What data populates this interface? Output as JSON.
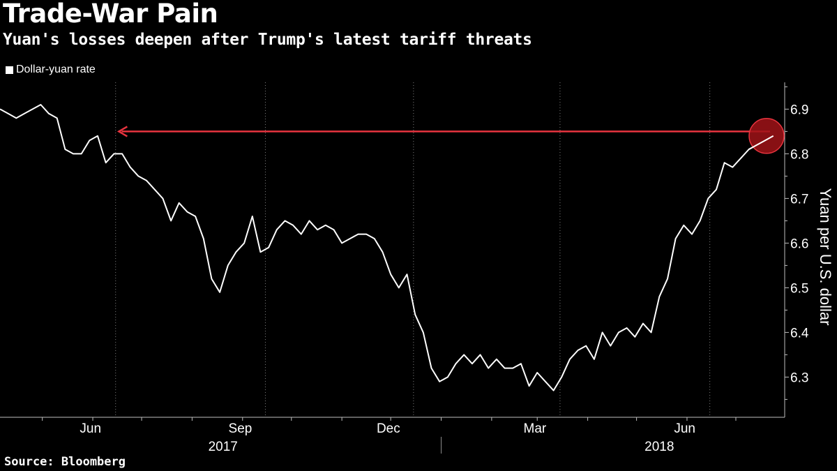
{
  "header": {
    "title": "Trade-War Pain",
    "subtitle": "Yuan's losses deepen after Trump's latest tariff threats"
  },
  "legend": {
    "label": "Dollar-yuan rate"
  },
  "source": "Source: Bloomberg",
  "colors": {
    "background": "#000000",
    "line": "#ffffff",
    "grid": "#808080",
    "annotation": "#e8343f",
    "highlight": "#a01318"
  },
  "chart_data": {
    "type": "line",
    "title": "Trade-War Pain",
    "subtitle": "Yuan's losses deepen after Trump's latest tariff threats",
    "ylabel": "Yuan per U.S. dollar",
    "ylim": [
      6.21,
      6.96
    ],
    "y_ticks": [
      6.3,
      6.4,
      6.5,
      6.6,
      6.7,
      6.8,
      6.9
    ],
    "xlim": [
      "2017-04-05",
      "2018-07-31"
    ],
    "x_ticks": [
      {
        "label": "Jun",
        "date": "2017-06-15"
      },
      {
        "label": "Sep",
        "date": "2017-09-15"
      },
      {
        "label": "Dec",
        "date": "2017-12-15"
      },
      {
        "label": "Mar",
        "date": "2018-03-15"
      },
      {
        "label": "Jun",
        "date": "2018-06-15"
      }
    ],
    "year_labels": [
      {
        "label": "2017",
        "date": "2017-08-20"
      },
      {
        "label": "2018",
        "date": "2018-05-15"
      }
    ],
    "year_divider": "2018-01-01",
    "grid": "vertical-dotted",
    "legend_position": "top-left",
    "series": [
      {
        "name": "Dollar-yuan rate",
        "x": [
          "2017-04-05",
          "2017-04-10",
          "2017-04-15",
          "2017-04-20",
          "2017-04-25",
          "2017-04-30",
          "2017-05-05",
          "2017-05-10",
          "2017-05-15",
          "2017-05-20",
          "2017-05-25",
          "2017-05-30",
          "2017-06-04",
          "2017-06-09",
          "2017-06-14",
          "2017-06-19",
          "2017-06-24",
          "2017-06-29",
          "2017-07-04",
          "2017-07-09",
          "2017-07-14",
          "2017-07-19",
          "2017-07-24",
          "2017-07-29",
          "2017-08-03",
          "2017-08-08",
          "2017-08-13",
          "2017-08-18",
          "2017-08-23",
          "2017-08-28",
          "2017-09-02",
          "2017-09-07",
          "2017-09-12",
          "2017-09-17",
          "2017-09-22",
          "2017-09-27",
          "2017-10-02",
          "2017-10-07",
          "2017-10-12",
          "2017-10-17",
          "2017-10-22",
          "2017-10-27",
          "2017-11-01",
          "2017-11-06",
          "2017-11-11",
          "2017-11-16",
          "2017-11-21",
          "2017-11-26",
          "2017-12-01",
          "2017-12-06",
          "2017-12-11",
          "2017-12-16",
          "2017-12-21",
          "2017-12-26",
          "2017-12-31",
          "2018-01-05",
          "2018-01-10",
          "2018-01-15",
          "2018-01-20",
          "2018-01-25",
          "2018-01-30",
          "2018-02-04",
          "2018-02-09",
          "2018-02-14",
          "2018-02-19",
          "2018-02-24",
          "2018-03-01",
          "2018-03-06",
          "2018-03-11",
          "2018-03-16",
          "2018-03-21",
          "2018-03-26",
          "2018-03-31",
          "2018-04-05",
          "2018-04-10",
          "2018-04-15",
          "2018-04-20",
          "2018-04-25",
          "2018-04-30",
          "2018-05-05",
          "2018-05-10",
          "2018-05-15",
          "2018-05-20",
          "2018-05-25",
          "2018-05-30",
          "2018-06-04",
          "2018-06-09",
          "2018-06-14",
          "2018-06-19",
          "2018-06-24",
          "2018-06-29",
          "2018-07-04",
          "2018-07-09",
          "2018-07-14",
          "2018-07-19",
          "2018-07-24"
        ],
        "values": [
          6.9,
          6.89,
          6.88,
          6.89,
          6.9,
          6.91,
          6.89,
          6.88,
          6.81,
          6.8,
          6.8,
          6.83,
          6.84,
          6.78,
          6.8,
          6.8,
          6.77,
          6.75,
          6.74,
          6.72,
          6.7,
          6.65,
          6.69,
          6.67,
          6.66,
          6.61,
          6.52,
          6.49,
          6.55,
          6.58,
          6.6,
          6.66,
          6.58,
          6.59,
          6.63,
          6.65,
          6.64,
          6.62,
          6.65,
          6.63,
          6.64,
          6.63,
          6.6,
          6.61,
          6.62,
          6.62,
          6.61,
          6.58,
          6.53,
          6.5,
          6.53,
          6.44,
          6.4,
          6.32,
          6.29,
          6.3,
          6.33,
          6.35,
          6.33,
          6.35,
          6.32,
          6.34,
          6.32,
          6.32,
          6.33,
          6.28,
          6.31,
          6.29,
          6.27,
          6.3,
          6.34,
          6.36,
          6.37,
          6.34,
          6.4,
          6.37,
          6.4,
          6.41,
          6.39,
          6.42,
          6.4,
          6.48,
          6.52,
          6.61,
          6.64,
          6.62,
          6.65,
          6.7,
          6.72,
          6.78,
          6.77,
          6.79,
          6.81,
          6.82,
          6.83,
          6.84
        ]
      }
    ],
    "annotations": [
      {
        "type": "arrow",
        "y": 6.85,
        "from": "2018-07-22",
        "to": "2017-06-17"
      },
      {
        "type": "circle-highlight",
        "x": "2018-07-22",
        "y": 6.84
      }
    ]
  }
}
